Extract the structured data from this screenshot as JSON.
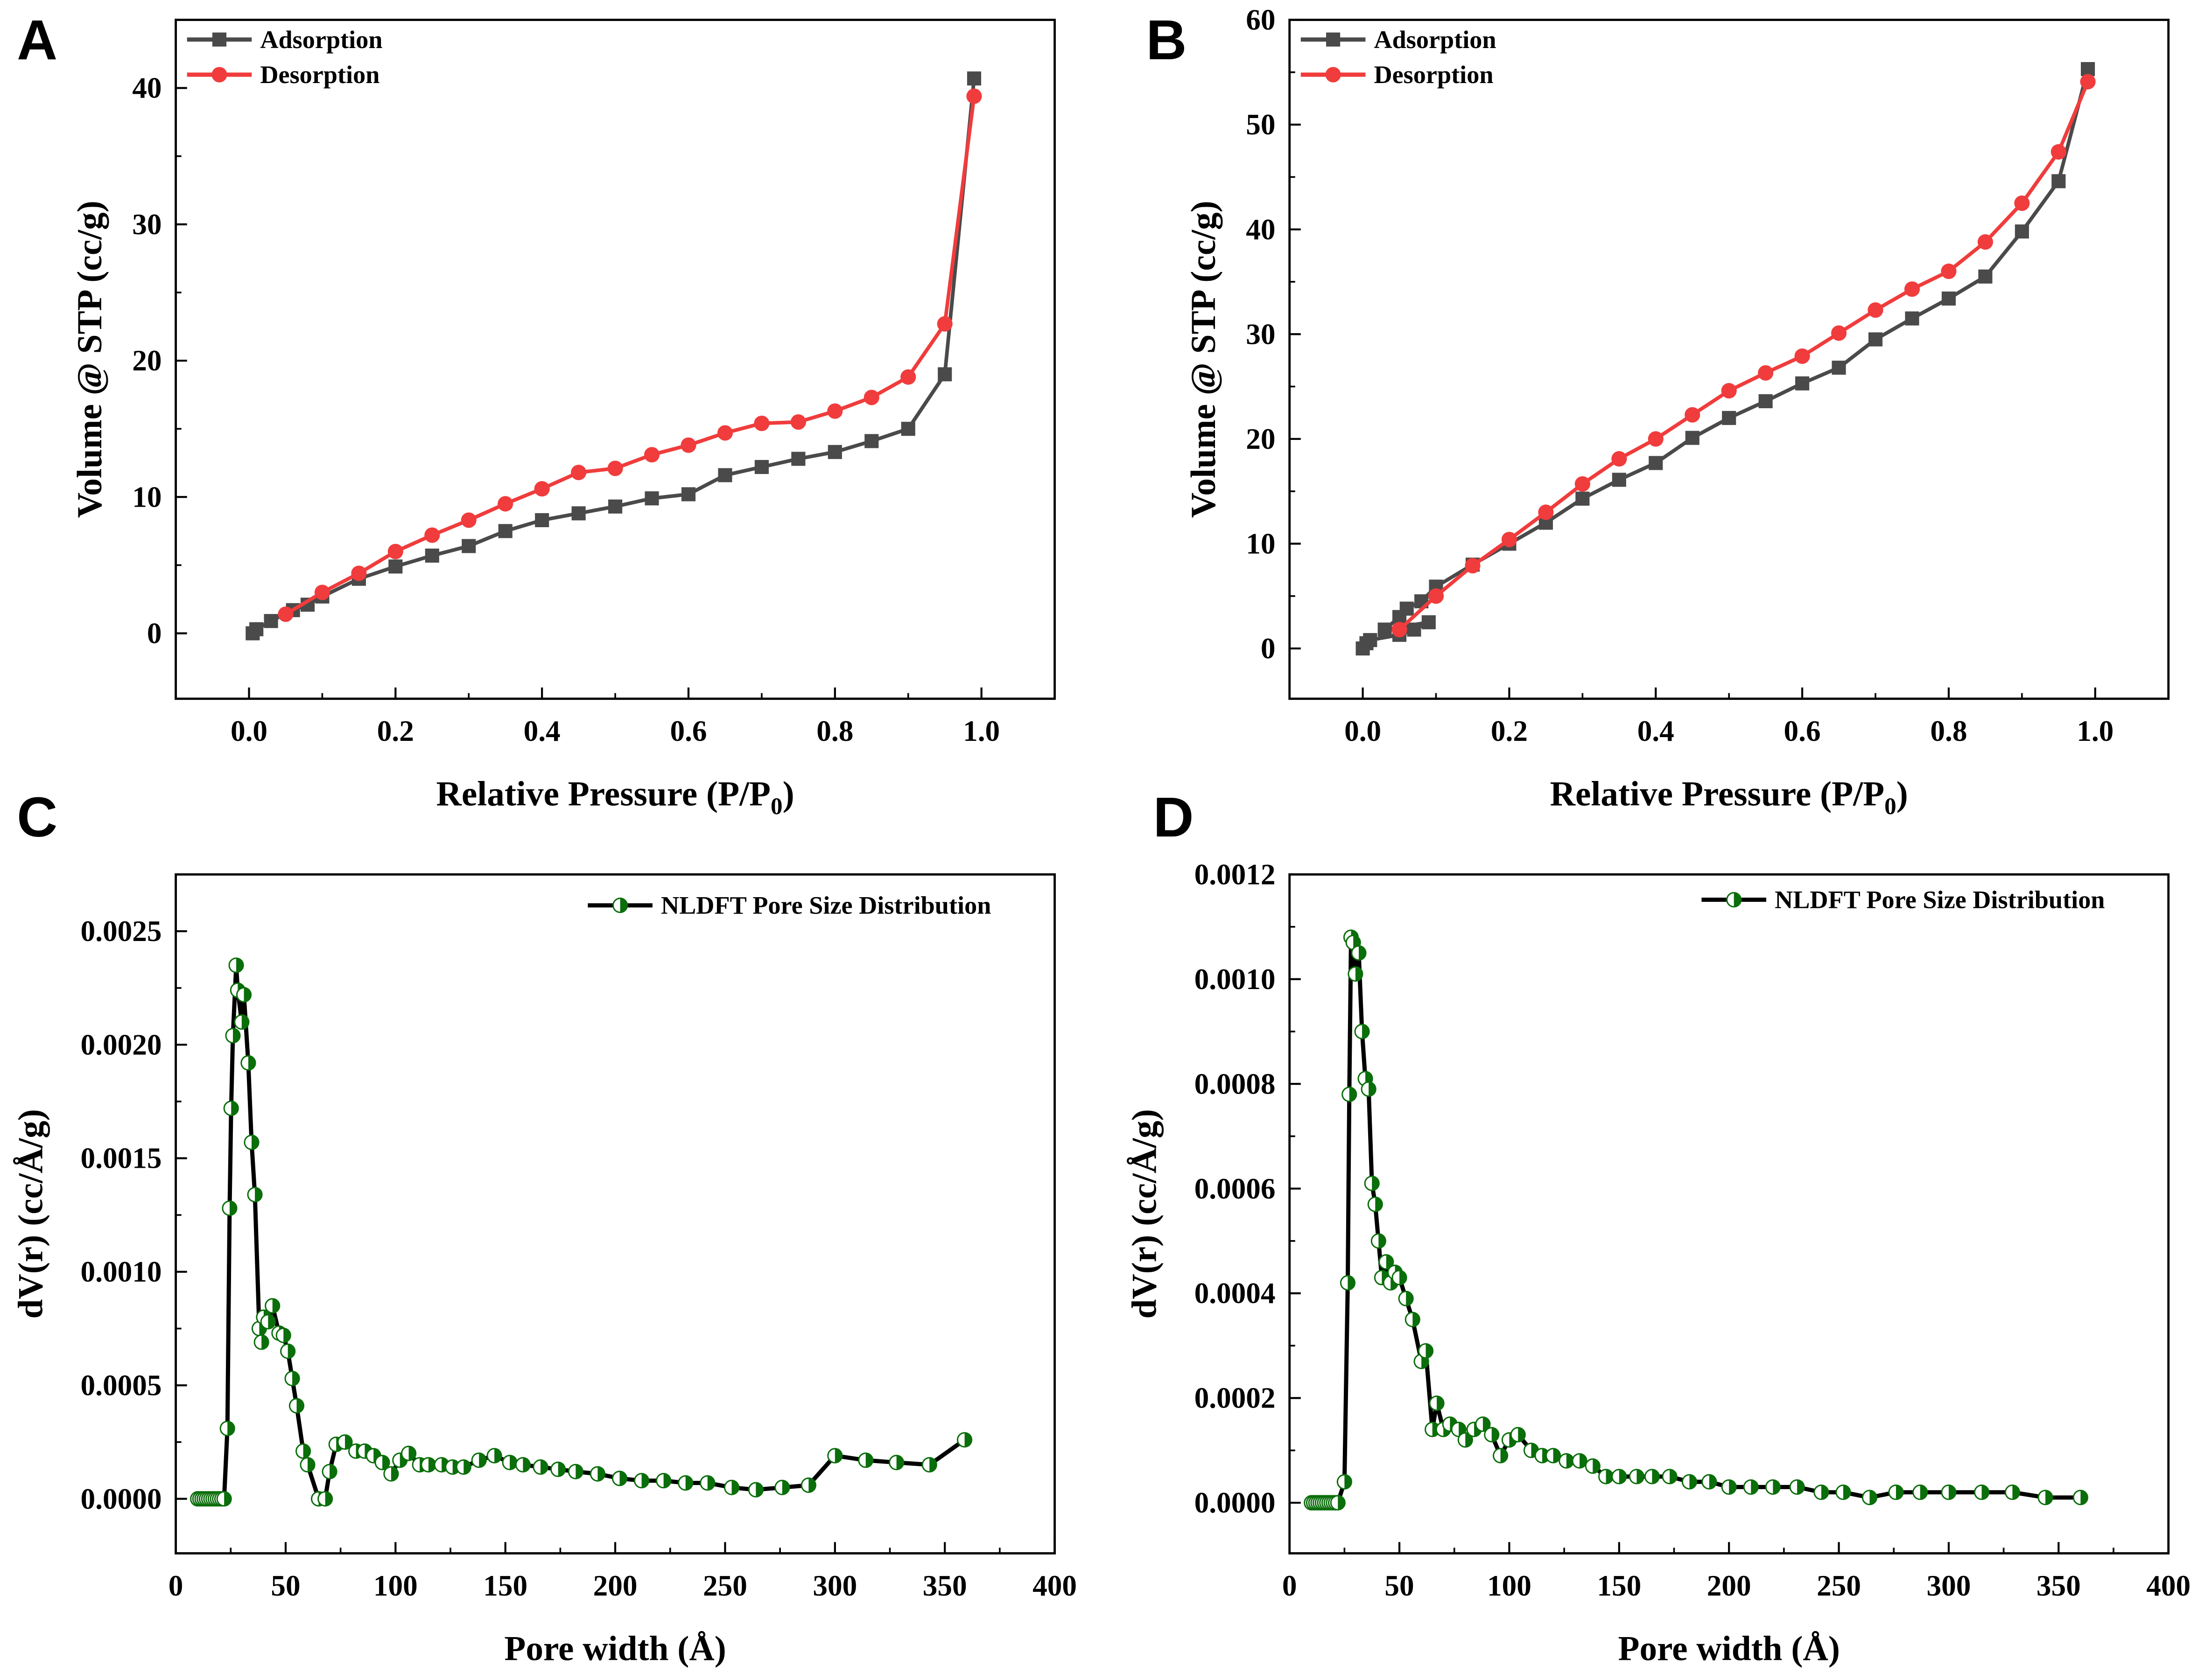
{
  "chart_data": [
    {
      "panel": "A",
      "type": "line",
      "xlabel": "Relative Pressure (P/P",
      "xlabel_sub": "0",
      "xlabel_end": ")",
      "ylabel": "Volume @ STP (cc/g)",
      "xlim": [
        -0.1,
        1.1
      ],
      "ylim": [
        -4.8,
        45
      ],
      "xticks": [
        "0.0",
        "0.2",
        "0.4",
        "0.6",
        "0.8",
        "1.0"
      ],
      "yticks": [
        "0",
        "10",
        "20",
        "30",
        "40"
      ],
      "grid": false,
      "legend": "top-left",
      "series": [
        {
          "name": "Adsorption",
          "color": "#4a4a4a",
          "marker": "square",
          "x": [
            0.005,
            0.01,
            0.03,
            0.06,
            0.08,
            0.1,
            0.15,
            0.2,
            0.25,
            0.3,
            0.35,
            0.4,
            0.45,
            0.5,
            0.55,
            0.6,
            0.65,
            0.7,
            0.75,
            0.8,
            0.85,
            0.9,
            0.95,
            0.99
          ],
          "y": [
            0,
            0.3,
            0.9,
            1.7,
            2.1,
            2.7,
            4.0,
            4.9,
            5.7,
            6.4,
            7.5,
            8.3,
            8.8,
            9.3,
            9.9,
            10.2,
            11.6,
            12.2,
            12.8,
            13.3,
            14.1,
            15.0,
            19.0,
            40.7
          ]
        },
        {
          "name": "Desorption",
          "color": "#f03c3c",
          "marker": "circle",
          "x": [
            0.99,
            0.95,
            0.9,
            0.85,
            0.8,
            0.75,
            0.7,
            0.65,
            0.6,
            0.55,
            0.5,
            0.45,
            0.4,
            0.35,
            0.3,
            0.25,
            0.2,
            0.15,
            0.1,
            0.05
          ],
          "y": [
            39.4,
            22.7,
            18.8,
            17.3,
            16.3,
            15.5,
            15.4,
            14.7,
            13.8,
            13.1,
            12.1,
            11.8,
            10.6,
            9.5,
            8.3,
            7.2,
            6.0,
            4.4,
            3.0,
            1.4
          ]
        }
      ]
    },
    {
      "panel": "B",
      "type": "line",
      "xlabel": "Relative Pressure (P/P",
      "xlabel_sub": "0",
      "xlabel_end": ")",
      "ylabel": "Volume @ STP (cc/g)",
      "xlim": [
        -0.1,
        1.1
      ],
      "ylim": [
        -4.8,
        60
      ],
      "xticks": [
        "0.0",
        "0.2",
        "0.4",
        "0.6",
        "0.8",
        "1.0"
      ],
      "yticks": [
        "0",
        "10",
        "20",
        "30",
        "40",
        "50",
        "60"
      ],
      "grid": false,
      "legend": "top-left",
      "series": [
        {
          "name": "Adsorption",
          "color": "#4a4a4a",
          "marker": "square",
          "x": [
            0,
            0.005,
            0.01,
            0.05,
            0.07,
            0.09,
            0.03,
            0.05,
            0.06,
            0.08,
            0.1,
            0.15,
            0.2,
            0.25,
            0.3,
            0.35,
            0.4,
            0.45,
            0.5,
            0.55,
            0.6,
            0.65,
            0.7,
            0.75,
            0.8,
            0.85,
            0.9,
            0.95,
            0.99
          ],
          "y": [
            0,
            0.5,
            0.8,
            1.3,
            1.8,
            2.5,
            1.8,
            3.0,
            3.8,
            4.5,
            5.9,
            8.0,
            10.0,
            12.0,
            14.3,
            16.1,
            17.7,
            20.1,
            22.0,
            23.6,
            25.3,
            26.8,
            29.5,
            31.5,
            33.4,
            35.5,
            39.8,
            44.6,
            55.3
          ]
        },
        {
          "name": "Desorption",
          "color": "#f03c3c",
          "marker": "circle",
          "x": [
            0.99,
            0.95,
            0.9,
            0.85,
            0.8,
            0.75,
            0.7,
            0.65,
            0.6,
            0.55,
            0.5,
            0.45,
            0.4,
            0.35,
            0.3,
            0.25,
            0.2,
            0.15,
            0.1,
            0.05
          ],
          "y": [
            54.1,
            47.4,
            42.5,
            38.8,
            36.0,
            34.3,
            32.3,
            30.1,
            27.9,
            26.3,
            24.6,
            22.3,
            20.0,
            18.1,
            15.7,
            13.0,
            10.4,
            7.9,
            5.0,
            1.8
          ]
        }
      ]
    },
    {
      "panel": "C",
      "type": "line",
      "xlabel": "Pore width (Å)",
      "xlabel_sub": "",
      "xlabel_end": "",
      "ylabel": "dV(r) (cc/Å/g)",
      "xlim": [
        0,
        400
      ],
      "ylim": [
        -0.00024,
        0.00275
      ],
      "xticks": [
        "0",
        "50",
        "100",
        "150",
        "200",
        "250",
        "300",
        "350",
        "400"
      ],
      "yticks": [
        "0.0000",
        "0.0005",
        "0.0010",
        "0.0015",
        "0.0020",
        "0.0025"
      ],
      "grid": false,
      "legend": "top-right",
      "series": [
        {
          "name": "NLDFT Pore Size Distribution",
          "color": "#000000",
          "marker_color": "#0a6e0a",
          "marker": "half-circle",
          "x": [
            10,
            11,
            12,
            13,
            14,
            15,
            16,
            17,
            18,
            19,
            20,
            21,
            22,
            23.5,
            24.5,
            25.2,
            26,
            27.5,
            28.2,
            30,
            31,
            33,
            34.5,
            36,
            38,
            39,
            40,
            42,
            44,
            47,
            49,
            51,
            53,
            55,
            58,
            60,
            65,
            68,
            70,
            73,
            77,
            82,
            86,
            90,
            94,
            98,
            102,
            106,
            111,
            115,
            121,
            126,
            131,
            138,
            145,
            152,
            158,
            166,
            174,
            182,
            192,
            202,
            212,
            222,
            232,
            242,
            253,
            264,
            276,
            288,
            300,
            314,
            328,
            343,
            359
          ],
          "y": [
            0,
            0,
            0,
            0,
            0,
            0,
            0,
            0,
            0,
            0,
            0,
            0,
            0,
            0.00031,
            0.00128,
            0.00172,
            0.00204,
            0.00235,
            0.00224,
            0.0021,
            0.00222,
            0.00192,
            0.00157,
            0.00134,
            0.00075,
            0.00069,
            0.0008,
            0.00078,
            0.00085,
            0.00073,
            0.00072,
            0.00065,
            0.00053,
            0.00041,
            0.00021,
            0.00015,
            0.0,
            0.0,
            0.00012,
            0.00024,
            0.00025,
            0.00021,
            0.00021,
            0.00019,
            0.00016,
            0.00011,
            0.00017,
            0.0002,
            0.00015,
            0.00015,
            0.00015,
            0.00014,
            0.00014,
            0.00017,
            0.00019,
            0.00016,
            0.00015,
            0.00014,
            0.00013,
            0.00012,
            0.00011,
            9e-05,
            8e-05,
            8e-05,
            7e-05,
            7e-05,
            5e-05,
            4e-05,
            5e-05,
            6e-05,
            0.00019,
            0.00017,
            0.00016,
            0.00015,
            0.00026
          ]
        }
      ]
    },
    {
      "panel": "D",
      "type": "line",
      "xlabel": "Pore width (Å)",
      "xlabel_sub": "",
      "xlabel_end": "",
      "ylabel": "dV(r) (cc/Å/g)",
      "xlim": [
        0,
        400
      ],
      "ylim": [
        -9.66e-05,
        0.0012
      ],
      "xticks": [
        "0",
        "50",
        "100",
        "150",
        "200",
        "250",
        "300",
        "350",
        "400"
      ],
      "yticks": [
        "0.0000",
        "0.0002",
        "0.0004",
        "0.0006",
        "0.0008",
        "0.0010",
        "0.0012"
      ],
      "grid": false,
      "legend": "top-right",
      "series": [
        {
          "name": "NLDFT Pore Size Distribution",
          "color": "#000000",
          "marker_color": "#0a6e0a",
          "marker": "half-circle",
          "x": [
            10,
            11,
            12,
            13,
            14,
            15,
            16,
            17,
            18,
            19,
            20,
            21,
            22,
            25,
            26.5,
            27.2,
            28,
            29,
            30,
            31.5,
            33,
            34.5,
            36,
            37.5,
            39,
            40.5,
            42,
            44,
            46,
            48,
            50,
            53,
            56,
            60,
            62,
            65,
            67,
            70,
            73,
            77,
            80,
            84,
            88,
            92,
            96,
            100,
            104,
            110,
            115,
            120,
            126,
            132,
            138,
            144,
            150,
            158,
            165,
            173,
            182,
            191,
            200,
            210,
            220,
            231,
            242,
            252,
            264,
            276,
            287,
            300,
            315,
            329,
            344,
            360
          ],
          "y": [
            0,
            0,
            0,
            0,
            0,
            0,
            0,
            0,
            0,
            0,
            0,
            0,
            0,
            4e-05,
            0.00042,
            0.00078,
            0.00108,
            0.00107,
            0.00101,
            0.00105,
            0.0009,
            0.00081,
            0.00079,
            0.00061,
            0.00057,
            0.0005,
            0.00043,
            0.00046,
            0.00042,
            0.00044,
            0.00043,
            0.00039,
            0.00035,
            0.00027,
            0.00029,
            0.00014,
            0.00019,
            0.00014,
            0.00015,
            0.00014,
            0.00012,
            0.00014,
            0.00015,
            0.00013,
            9e-05,
            0.00012,
            0.00013,
            0.0001,
            9e-05,
            9e-05,
            8e-05,
            8e-05,
            7e-05,
            5e-05,
            5e-05,
            5e-05,
            5e-05,
            5e-05,
            4e-05,
            4e-05,
            3e-05,
            3e-05,
            3e-05,
            3e-05,
            2e-05,
            2e-05,
            1e-05,
            2e-05,
            2e-05,
            2e-05,
            2e-05,
            2e-05,
            1e-05,
            1e-05
          ]
        }
      ]
    }
  ]
}
